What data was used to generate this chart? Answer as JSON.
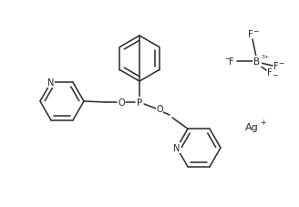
{
  "bg_color": "#ffffff",
  "line_color": "#2a2a2a",
  "line_width": 1.1,
  "font_size": 7.0,
  "fig_width": 3.28,
  "fig_height": 2.28,
  "dpi": 100,
  "xlim": [
    0,
    328
  ],
  "ylim": [
    228,
    0
  ]
}
